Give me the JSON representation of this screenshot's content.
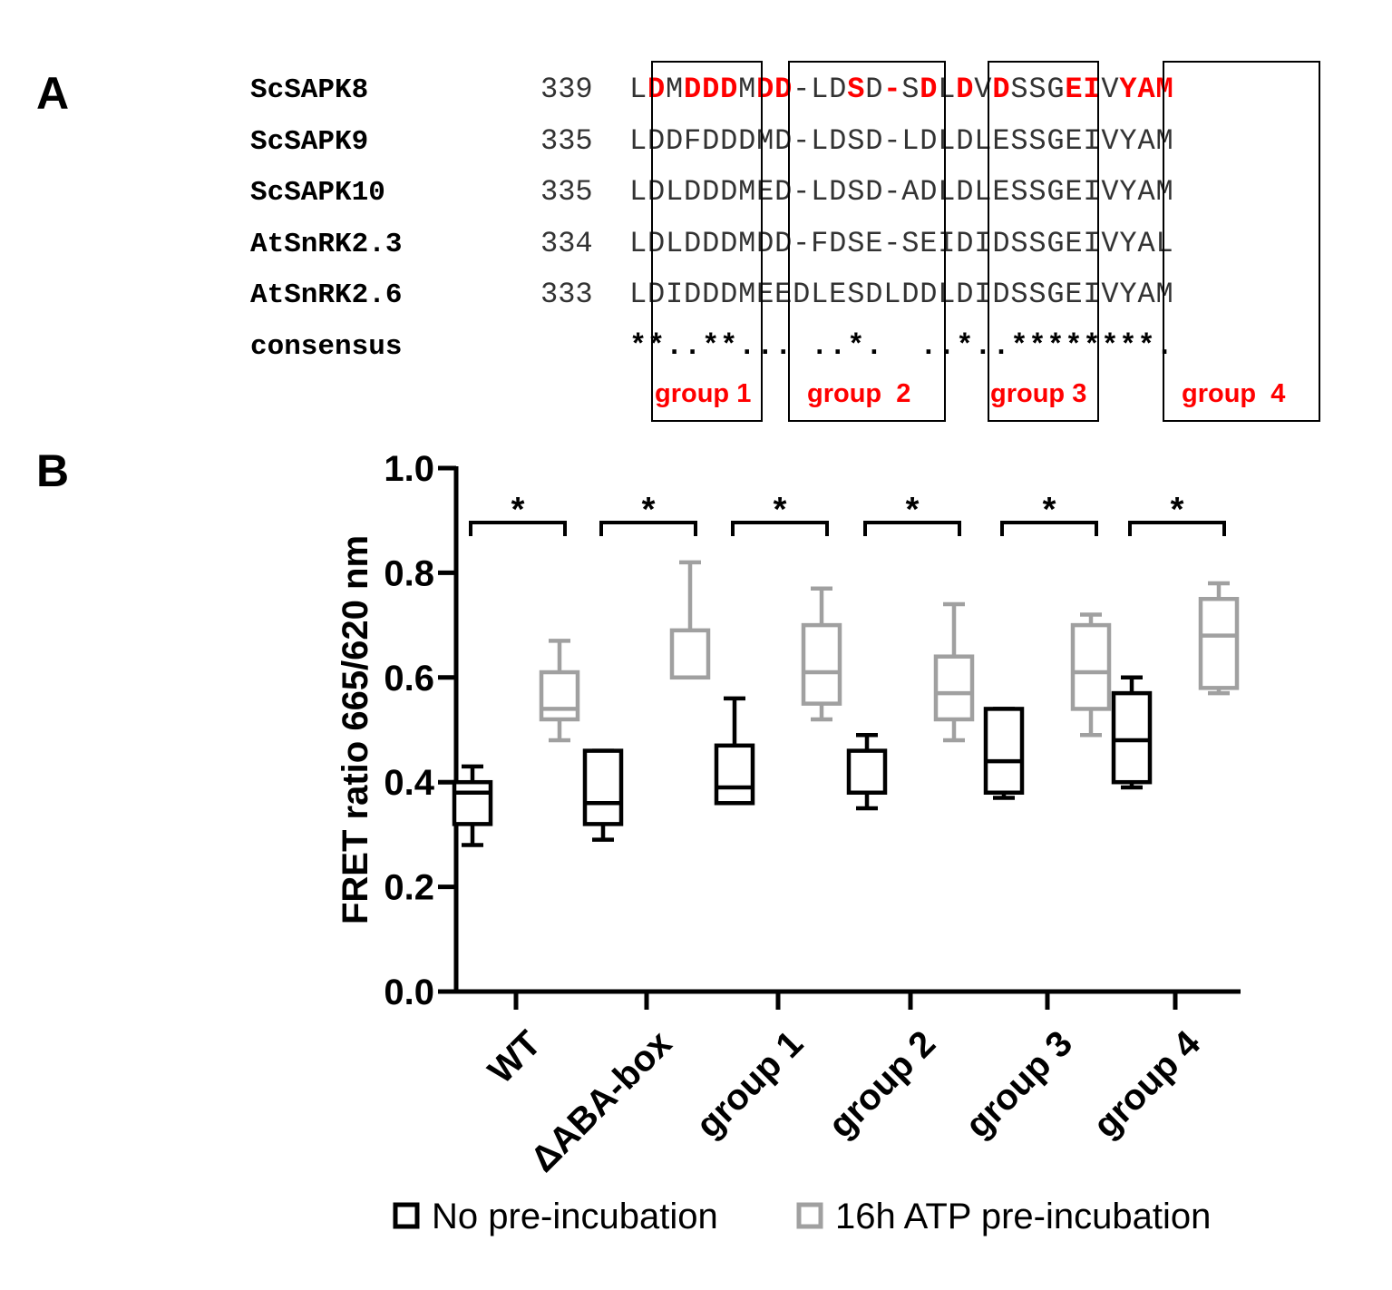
{
  "panel_a": {
    "label": "A",
    "rows": [
      {
        "name": "ScSAPK8",
        "start": "339",
        "sequence": "LDMDDDMDD-LDSD-SDLDVDSSGEIVYAM",
        "highlight": [
          1,
          3,
          4,
          5,
          7,
          8,
          12,
          14,
          16,
          18,
          20,
          24,
          25,
          27,
          28,
          29
        ]
      },
      {
        "name": "ScSAPK9",
        "start": "335",
        "sequence": "LDDFDDDMD-LDSD-LDLDLESSGEIVYAM",
        "highlight": []
      },
      {
        "name": "ScSAPK10",
        "start": "335",
        "sequence": "LDLDDDMED-LDSD-ADLDLESSGEIVYAM",
        "highlight": []
      },
      {
        "name": "AtSnRK2.3",
        "start": "334",
        "sequence": "LDLDDDMDD-FDSE-SEIDIDSSGEIVYAL",
        "highlight": []
      },
      {
        "name": "AtSnRK2.6",
        "start": "333",
        "sequence": "LDIDDDMEEDLESDLDDLDIDSSGEIVYAM",
        "highlight": []
      },
      {
        "name": "consensus",
        "start": "",
        "sequence": "**..**... ..*.  ..*..********.",
        "highlight": []
      }
    ],
    "groups": [
      "group 1",
      "group  2",
      "group 3",
      "group  4"
    ]
  },
  "panel_b_label": "B",
  "chart_data": {
    "type": "box",
    "title": "",
    "xlabel": "",
    "ylabel": "FRET ratio 665/620 nm",
    "ylim": [
      0,
      1.0
    ],
    "yticks": [
      "0.0",
      "0.2",
      "0.4",
      "0.6",
      "0.8",
      "1.0"
    ],
    "categories": [
      "WT",
      "ΔABA-box",
      "group 1",
      "group 2",
      "group 3",
      "group 4"
    ],
    "series": [
      {
        "name": "No pre-incubation",
        "color": "#000000",
        "boxes": [
          {
            "min": 0.28,
            "q1": 0.32,
            "median": 0.38,
            "q3": 0.4,
            "max": 0.43
          },
          {
            "min": 0.29,
            "q1": 0.32,
            "median": 0.36,
            "q3": 0.46,
            "max": 0.46
          },
          {
            "min": 0.36,
            "q1": 0.36,
            "median": 0.39,
            "q3": 0.47,
            "max": 0.56
          },
          {
            "min": 0.35,
            "q1": 0.38,
            "median": 0.38,
            "q3": 0.46,
            "max": 0.49
          },
          {
            "min": 0.37,
            "q1": 0.38,
            "median": 0.44,
            "q3": 0.54,
            "max": 0.54
          },
          {
            "min": 0.39,
            "q1": 0.4,
            "median": 0.48,
            "q3": 0.57,
            "max": 0.6
          }
        ]
      },
      {
        "name": "16h ATP pre-incubation",
        "color": "#a0a0a0",
        "boxes": [
          {
            "min": 0.48,
            "q1": 0.52,
            "median": 0.54,
            "q3": 0.61,
            "max": 0.67
          },
          {
            "min": 0.6,
            "q1": 0.6,
            "median": 0.6,
            "q3": 0.69,
            "max": 0.82
          },
          {
            "min": 0.52,
            "q1": 0.55,
            "median": 0.61,
            "q3": 0.7,
            "max": 0.77
          },
          {
            "min": 0.48,
            "q1": 0.52,
            "median": 0.57,
            "q3": 0.64,
            "max": 0.74
          },
          {
            "min": 0.49,
            "q1": 0.54,
            "median": 0.61,
            "q3": 0.7,
            "max": 0.72
          },
          {
            "min": 0.57,
            "q1": 0.58,
            "median": 0.68,
            "q3": 0.75,
            "max": 0.78
          }
        ]
      }
    ],
    "significance": [
      "*",
      "*",
      "*",
      "*",
      "*",
      "*"
    ],
    "legend": [
      "No pre-incubation",
      "16h ATP pre-incubation"
    ],
    "legend_position": "bottom"
  }
}
